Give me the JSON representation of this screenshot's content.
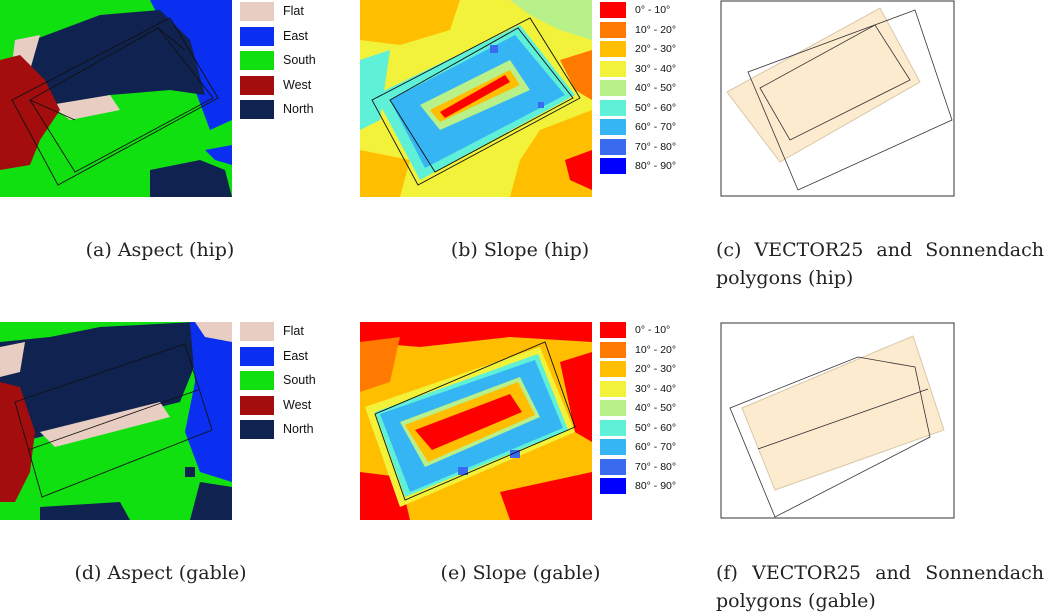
{
  "aspect_legend": [
    {
      "label": "Flat",
      "color": "#e8cdc3"
    },
    {
      "label": "East",
      "color": "#0b2ff0"
    },
    {
      "label": "South",
      "color": "#10e010"
    },
    {
      "label": "West",
      "color": "#a40d0d"
    },
    {
      "label": "North",
      "color": "#0f2250"
    }
  ],
  "slope_legend": [
    {
      "label": "0° - 10°",
      "color": "#ff0000"
    },
    {
      "label": "10° - 20°",
      "color": "#ff7a00"
    },
    {
      "label": "20° - 30°",
      "color": "#ffbf00"
    },
    {
      "label": "30° - 40°",
      "color": "#f2f23a"
    },
    {
      "label": "40° - 50°",
      "color": "#b8f08a"
    },
    {
      "label": "50° - 60°",
      "color": "#5ff0d8"
    },
    {
      "label": "60° - 70°",
      "color": "#36b5f5"
    },
    {
      "label": "70° - 80°",
      "color": "#3a6bef"
    },
    {
      "label": "80° - 90°",
      "color": "#0000ff"
    }
  ],
  "polygon_colors": {
    "sonnendach_fill": "#fdebd0",
    "sonnendach_stroke": "#d9c7a8",
    "vector25_stroke": "#333333"
  },
  "captions": {
    "a": "(a) Aspect (hip)",
    "b": "(b) Slope (hip)",
    "c_line1": "(c) VECTOR25 and Sonnendach",
    "c_line2": "polygons (hip)",
    "d": "(d) Aspect (gable)",
    "e": "(e) Slope (gable)",
    "f_line1": "(f) VECTOR25 and Sonnendach",
    "f_line2": "polygons (gable)"
  }
}
